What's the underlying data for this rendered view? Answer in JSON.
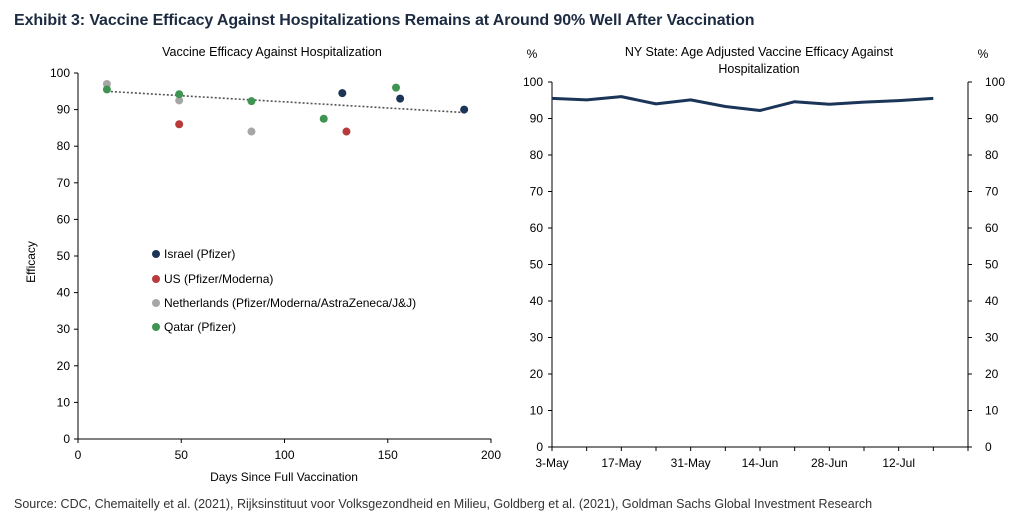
{
  "title": "Exhibit 3: Vaccine Efficacy Against Hospitalizations Remains at Around 90% Well After Vaccination",
  "source": "Source: CDC, Chemaitelly et al. (2021), Rijksinstituut voor Volksgezondheid en Milieu, Goldberg et al. (2021), Goldman Sachs Global Investment Research",
  "colors": {
    "israel": "#1c3557",
    "us": "#b83a3a",
    "netherlands": "#a6a6a6",
    "qatar": "#3f9452",
    "ny_line": "#1b3558",
    "trend": "#555555",
    "title": "#1c2b40"
  },
  "chart_data": [
    {
      "type": "scatter",
      "title": "Vaccine Efficacy Against Hospitalization",
      "xlabel": "Days Since Full Vaccination",
      "ylabel": "Efficacy",
      "xlim": [
        0,
        200
      ],
      "ylim": [
        0,
        100
      ],
      "xticks": [
        0,
        50,
        100,
        150,
        200
      ],
      "yticks": [
        0,
        10,
        20,
        30,
        40,
        50,
        60,
        70,
        80,
        90,
        100
      ],
      "grid": false,
      "legend_position": "center-left",
      "trendline": {
        "x": [
          14,
          187
        ],
        "y": [
          95,
          89.2
        ],
        "style": "dotted"
      },
      "series": [
        {
          "name": "Israel (Pfizer)",
          "color_key": "israel",
          "points": [
            [
              128,
              94.5
            ],
            [
              156,
              93
            ],
            [
              187,
              90
            ]
          ]
        },
        {
          "name": "US (Pfizer/Moderna)",
          "color_key": "us",
          "points": [
            [
              49,
              86
            ],
            [
              130,
              84
            ]
          ]
        },
        {
          "name": "Netherlands (Pfizer/Moderna/AstraZeneca/J&J)",
          "color_key": "netherlands",
          "points": [
            [
              14,
              97
            ],
            [
              49,
              92.5
            ],
            [
              84,
              84
            ]
          ]
        },
        {
          "name": "Qatar (Pfizer)",
          "color_key": "qatar",
          "points": [
            [
              14,
              95.5
            ],
            [
              49,
              94.2
            ],
            [
              84,
              92.3
            ],
            [
              119,
              87.5
            ],
            [
              154,
              96
            ]
          ]
        }
      ]
    },
    {
      "type": "line",
      "title_lines": [
        "NY State: Age Adjusted Vaccine Efficacy Against",
        "Hospitalization"
      ],
      "left_unit": "%",
      "right_unit": "%",
      "ylim": [
        0,
        100
      ],
      "yticks": [
        0,
        10,
        20,
        30,
        40,
        50,
        60,
        70,
        80,
        90,
        100
      ],
      "xtick_labels": [
        "3-May",
        "17-May",
        "31-May",
        "14-Jun",
        "28-Jun",
        "12-Jul"
      ],
      "grid": false,
      "series": [
        {
          "color_key": "ny_line",
          "x": [
            "3-May",
            "10-May",
            "17-May",
            "24-May",
            "31-May",
            "7-Jun",
            "14-Jun",
            "21-Jun",
            "28-Jun",
            "5-Jul",
            "12-Jul",
            "19-Jul"
          ],
          "values": [
            95.5,
            95.1,
            96.0,
            94.0,
            95.1,
            93.3,
            92.2,
            94.6,
            93.9,
            94.5,
            94.9,
            95.5
          ]
        }
      ]
    }
  ]
}
